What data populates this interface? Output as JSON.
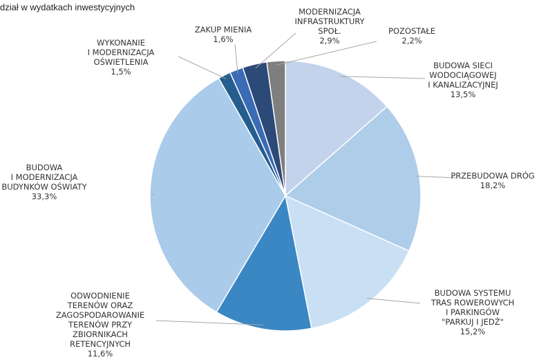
{
  "chart_data": {
    "type": "pie",
    "title": "dział w wydatkach inwestycyjnych",
    "categories": [
      "BUDOWA SIECI\nWODOCIĄGOWEJ\nI KANALIZACYJNEJ",
      "PRZEBUDOWA DRÓG",
      "BUDOWA SYSTEMU\nTRAS ROWEROWYCH\nI PARKINGÓW\n\"PARKUJ I JEDŹ\"",
      "ODWODNIENIE\nTERENÓW ORAZ\nZAGOSPODAROWANIE\nTERENÓW PRZY\nZBIORNIKACH\nRETENCYJNYCH",
      "BUDOWA\nI MODERNIZACJA\nBUDYNKÓW OŚWIATY",
      "WYKONANIE\nI MODERNIZACJA\nOŚWIETLENIA",
      "ZAKUP MIENIA",
      "MODERNIZACJA\nINFRASTRUKTURY\nSPOŁ.",
      "POZOSTAŁE"
    ],
    "values": [
      13.5,
      18.2,
      15.2,
      11.6,
      33.3,
      1.5,
      1.6,
      2.9,
      2.2
    ],
    "value_labels": [
      "13,5%",
      "18,2%",
      "15,2%",
      "11,6%",
      "33,3%",
      "1,5%",
      "1,6%",
      "2,9%",
      "2,2%"
    ],
    "colors": [
      "#c3d3ec",
      "#aecde9",
      "#c9dff3",
      "#3a87c4",
      "#aacbea",
      "#255e8e",
      "#3a6bb5",
      "#2c4a78",
      "#7f7f7f"
    ]
  }
}
